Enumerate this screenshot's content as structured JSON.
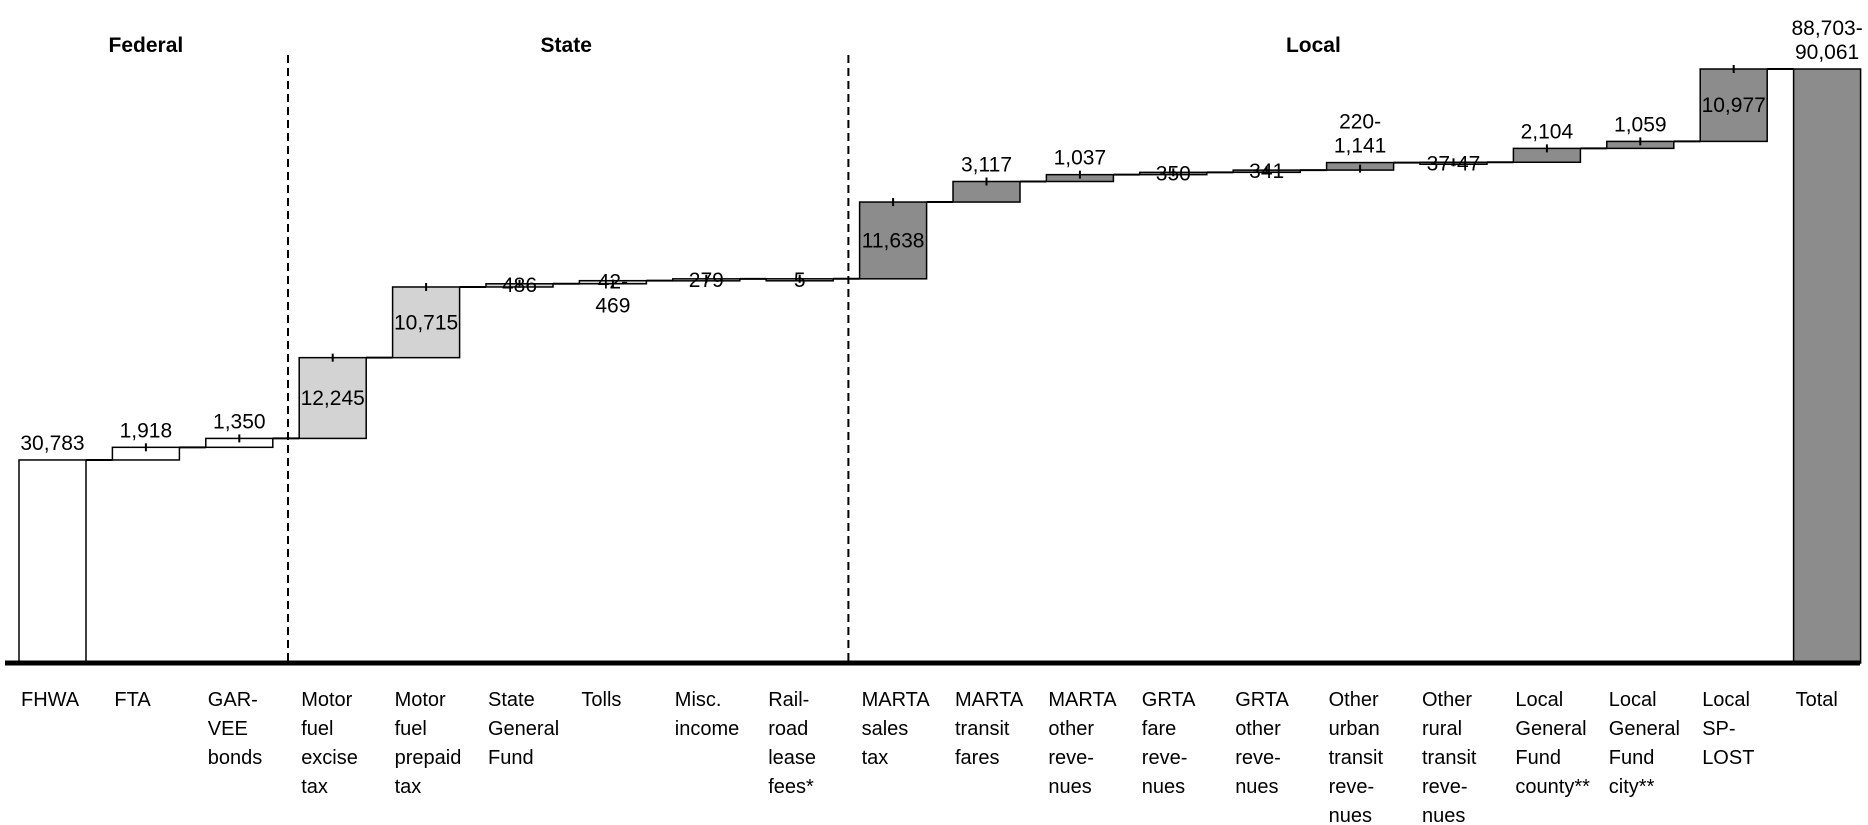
{
  "chart_data": {
    "type": "waterfall",
    "groups": [
      "Federal",
      "State",
      "Local"
    ],
    "colors": {
      "Federal": "#ffffff",
      "State": "#d3d3d3",
      "Local": "#8c8c8c",
      "Total": "#8c8c8c"
    },
    "bars": [
      {
        "category": [
          "FHWA"
        ],
        "group": "Federal",
        "low": 30783,
        "high": 30783,
        "label": [
          "30,783"
        ],
        "kind": "base"
      },
      {
        "category": [
          "FTA"
        ],
        "group": "Federal",
        "low": 1918,
        "high": 1918,
        "label": [
          "1,918"
        ]
      },
      {
        "category": [
          "GAR-",
          "VEE",
          "bonds"
        ],
        "group": "Federal",
        "low": 1350,
        "high": 1350,
        "label": [
          "1,350"
        ]
      },
      {
        "category": [
          "Motor",
          "fuel",
          "excise",
          "tax"
        ],
        "group": "State",
        "low": 12245,
        "high": 12245,
        "label": [
          "12,245"
        ]
      },
      {
        "category": [
          "Motor",
          "fuel",
          "prepaid",
          "tax"
        ],
        "group": "State",
        "low": 10715,
        "high": 10715,
        "label": [
          "10,715"
        ]
      },
      {
        "category": [
          "State",
          "General",
          "Fund"
        ],
        "group": "State",
        "low": 486,
        "high": 486,
        "label": [
          "486"
        ]
      },
      {
        "category": [
          "Tolls"
        ],
        "group": "State",
        "low": 42,
        "high": 469,
        "label": [
          "42-",
          "469"
        ]
      },
      {
        "category": [
          "Misc.",
          "income"
        ],
        "group": "State",
        "low": 279,
        "high": 279,
        "label": [
          "279"
        ]
      },
      {
        "category": [
          "Rail-",
          "road",
          "lease",
          "fees*"
        ],
        "group": "State",
        "low": 5,
        "high": 5,
        "label": [
          "5"
        ]
      },
      {
        "category": [
          "MARTA",
          "sales",
          "tax"
        ],
        "group": "Local",
        "low": 11638,
        "high": 11638,
        "label": [
          "11,638"
        ]
      },
      {
        "category": [
          "MARTA",
          "transit",
          "fares"
        ],
        "group": "Local",
        "low": 3117,
        "high": 3117,
        "label": [
          "3,117"
        ]
      },
      {
        "category": [
          "MARTA",
          "other",
          "reve-",
          "nues"
        ],
        "group": "Local",
        "low": 1037,
        "high": 1037,
        "label": [
          "1,037"
        ]
      },
      {
        "category": [
          "GRTA",
          "fare",
          "reve-",
          "nues"
        ],
        "group": "Local",
        "low": 350,
        "high": 350,
        "label": [
          "350"
        ]
      },
      {
        "category": [
          "GRTA",
          "other",
          "reve-",
          "nues"
        ],
        "group": "Local",
        "low": 341,
        "high": 341,
        "label": [
          "341"
        ]
      },
      {
        "category": [
          "Other",
          "urban",
          "transit",
          "reve-",
          "nues"
        ],
        "group": "Local",
        "low": 220,
        "high": 1141,
        "label": [
          "220-",
          "1,141"
        ]
      },
      {
        "category": [
          "Other",
          "rural",
          "transit",
          "reve-",
          "nues"
        ],
        "group": "Local",
        "low": 37,
        "high": 47,
        "label": [
          "37-47"
        ]
      },
      {
        "category": [
          "Local",
          "General",
          "Fund",
          "county**"
        ],
        "group": "Local",
        "low": 2104,
        "high": 2104,
        "label": [
          "2,104"
        ]
      },
      {
        "category": [
          "Local",
          "General",
          "Fund",
          "city**"
        ],
        "group": "Local",
        "low": 1059,
        "high": 1059,
        "label": [
          "1,059"
        ]
      },
      {
        "category": [
          "Local",
          "SP-",
          "LOST"
        ],
        "group": "Local",
        "low": 10977,
        "high": 10977,
        "label": [
          "10,977"
        ]
      },
      {
        "category": [
          "Total"
        ],
        "group": "Total",
        "low": 88703,
        "high": 90061,
        "label": [
          "88,703-",
          "90,061"
        ],
        "kind": "total"
      }
    ],
    "ylim": [
      0,
      90061
    ],
    "grid": false,
    "legend": "none"
  }
}
